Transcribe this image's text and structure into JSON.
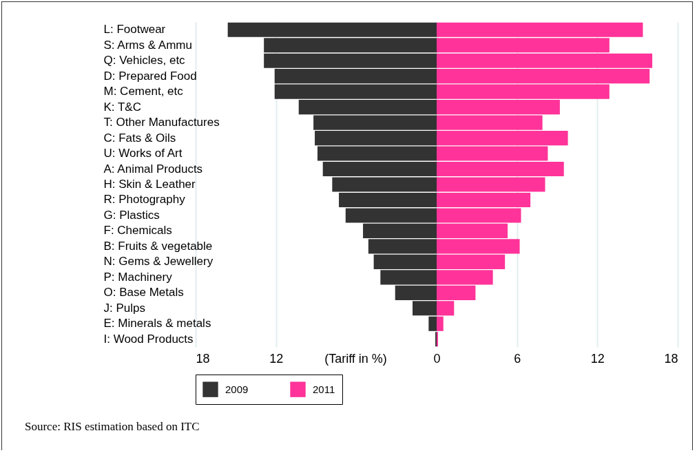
{
  "chart_data": {
    "type": "bar",
    "orientation": "horizontal",
    "xlabel": "(Tariff in %)",
    "categories": [
      "L: Footwear",
      "S: Arms & Ammu",
      "Q: Vehicles, etc",
      "D: Prepared Food",
      "M: Cement, etc",
      "K: T&C",
      "T: Other Manufactures",
      "C: Fats & Oils",
      "U: Works of Art",
      "A: Animal Products",
      "H: Skin & Leather",
      "R: Photography",
      "G: Plastics",
      "F: Chemicals",
      "B: Fruits & vegetable",
      "N: Gems & Jewellery",
      "P: Machinery",
      "O: Base Metals",
      "J: Pulps",
      "E: Minerals & metals",
      "I: Wood Products"
    ],
    "series": [
      {
        "name": "2009",
        "color": "#333333",
        "values": [
          -15.6,
          -12.9,
          -12.9,
          -12.1,
          -12.1,
          -10.3,
          -9.2,
          -9.1,
          -8.9,
          -8.5,
          -7.8,
          -7.3,
          -6.8,
          -5.5,
          -5.1,
          -4.7,
          -4.2,
          -3.1,
          -1.8,
          -0.6,
          -0.1
        ]
      },
      {
        "name": "2011",
        "color": "#ff3399",
        "values": [
          15.4,
          12.9,
          16.1,
          15.9,
          12.9,
          9.2,
          7.9,
          9.8,
          8.3,
          9.5,
          8.1,
          7.0,
          6.3,
          5.3,
          6.2,
          5.1,
          4.2,
          2.9,
          1.3,
          0.5,
          0.1
        ]
      }
    ],
    "xlim": [
      -18,
      18
    ],
    "xticks": [
      {
        "value": -18,
        "label": "18"
      },
      {
        "value": -12,
        "label": "12"
      },
      0,
      6,
      12,
      18
    ],
    "grid": "x",
    "legend": "bottom",
    "stacked": true,
    "annotations": [
      "Source: RIS estimation based on ITC"
    ]
  }
}
